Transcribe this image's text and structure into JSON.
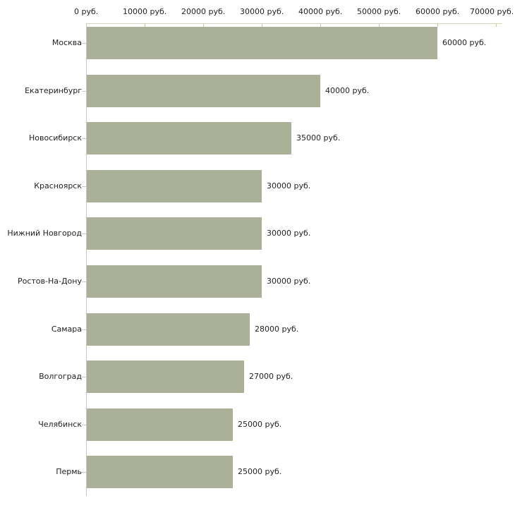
{
  "chart_data": {
    "type": "bar",
    "orientation": "horizontal",
    "title": "",
    "xlabel": "",
    "ylabel": "",
    "xlim": [
      0,
      70000
    ],
    "grid": false,
    "legend_position": "none",
    "categories": [
      "Москва",
      "Екатеринбург",
      "Новосибирск",
      "Красноярск",
      "Нижний Новгород",
      "Ростов-На-Дону",
      "Самара",
      "Волгоград",
      "Челябинск",
      "Пермь"
    ],
    "values": [
      60000,
      40000,
      35000,
      30000,
      30000,
      30000,
      28000,
      27000,
      25000,
      25000
    ],
    "bars": [
      {
        "category": "Москва",
        "value": 60000,
        "label": "60000 руб."
      },
      {
        "category": "Екатеринбург",
        "value": 40000,
        "label": "40000 руб."
      },
      {
        "category": "Новосибирск",
        "value": 35000,
        "label": "35000 руб."
      },
      {
        "category": "Красноярск",
        "value": 30000,
        "label": "30000 руб."
      },
      {
        "category": "Нижний Новгород",
        "value": 30000,
        "label": "30000 руб."
      },
      {
        "category": "Ростов-На-Дону",
        "value": 30000,
        "label": "30000 руб."
      },
      {
        "category": "Самара",
        "value": 28000,
        "label": "28000 руб."
      },
      {
        "category": "Волгоград",
        "value": 27000,
        "label": "27000 руб."
      },
      {
        "category": "Челябинск",
        "value": 25000,
        "label": "25000 руб."
      },
      {
        "category": "Пермь",
        "value": 25000,
        "label": "25000 руб."
      }
    ],
    "x_ticks": [
      {
        "value": 0,
        "label": "0 руб."
      },
      {
        "value": 10000,
        "label": "10000 руб."
      },
      {
        "value": 20000,
        "label": "20000 руб."
      },
      {
        "value": 30000,
        "label": "30000 руб."
      },
      {
        "value": 40000,
        "label": "40000 руб."
      },
      {
        "value": 50000,
        "label": "50000 руб."
      },
      {
        "value": 60000,
        "label": "60000 руб."
      },
      {
        "value": 70000,
        "label": "70000 руб."
      }
    ],
    "colors": {
      "bar": "#ABB199",
      "top_axis_line": "#D8D4B6",
      "x_tick": "#CFCB9E",
      "left_axis_line": "#C8C8C8",
      "category_tick": "#C9CCB8",
      "text": "#222222",
      "background": "#FFFFFF"
    }
  }
}
